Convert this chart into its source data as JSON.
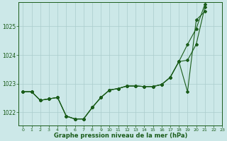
{
  "title": "Graphe pression niveau de la mer (hPa)",
  "bg_color": "#cce8e8",
  "grid_color": "#aacccc",
  "line_color": "#1a5c1a",
  "xlim": [
    -0.5,
    23
  ],
  "ylim": [
    1021.55,
    1025.85
  ],
  "yticks": [
    1022,
    1023,
    1024,
    1025
  ],
  "xticks": [
    0,
    1,
    2,
    3,
    4,
    5,
    6,
    7,
    8,
    9,
    10,
    11,
    12,
    13,
    14,
    15,
    16,
    17,
    18,
    19,
    20,
    21,
    22,
    23
  ],
  "s1_x": [
    0,
    1,
    2,
    3,
    4,
    5,
    6,
    7,
    8,
    9,
    10,
    11,
    12,
    13,
    14,
    15,
    16,
    17,
    18,
    19,
    20,
    21
  ],
  "s1_y": [
    1022.72,
    1022.72,
    1022.42,
    1022.47,
    1022.52,
    1021.87,
    1021.77,
    1021.77,
    1022.17,
    1022.52,
    1022.78,
    1022.83,
    1022.92,
    1022.92,
    1022.9,
    1022.9,
    1022.97,
    1023.22,
    1023.77,
    1022.72,
    1025.22,
    1025.52
  ],
  "s2_x": [
    0,
    1,
    2,
    3,
    4,
    5,
    6,
    7,
    8,
    9,
    10,
    11,
    12,
    13,
    14,
    15,
    16,
    17,
    18,
    19,
    20,
    21
  ],
  "s2_y": [
    1022.72,
    1022.72,
    1022.42,
    1022.47,
    1022.52,
    1021.87,
    1021.77,
    1021.77,
    1022.17,
    1022.52,
    1022.78,
    1022.83,
    1022.92,
    1022.92,
    1022.9,
    1022.9,
    1022.97,
    1023.22,
    1023.77,
    1023.82,
    1024.37,
    1025.67
  ],
  "s3_x": [
    0,
    1,
    2,
    3,
    4,
    5,
    6,
    7,
    8,
    9,
    10,
    11,
    12,
    13,
    14,
    15,
    16,
    17,
    18,
    19,
    20,
    21
  ],
  "s3_y": [
    1022.72,
    1022.72,
    1022.42,
    1022.47,
    1022.52,
    1021.87,
    1021.77,
    1021.77,
    1022.17,
    1022.52,
    1022.78,
    1022.83,
    1022.92,
    1022.92,
    1022.9,
    1022.9,
    1022.97,
    1023.22,
    1023.77,
    1024.37,
    1024.92,
    1025.77
  ]
}
